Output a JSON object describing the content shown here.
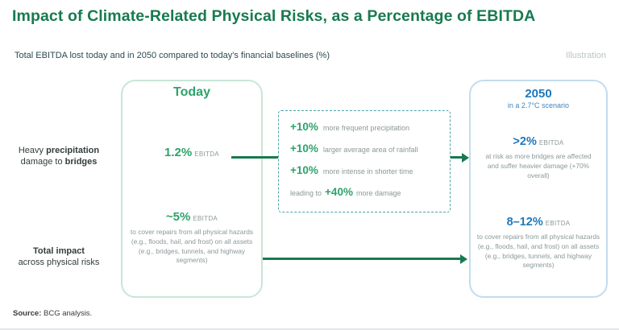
{
  "header": {
    "title": "Impact of Climate-Related Physical Risks, as a Percentage of EBITDA",
    "subtitle": "Total EBITDA lost today and in 2050 compared to today's financial baselines (%)",
    "tag": "Illustration"
  },
  "left_labels": {
    "row1": {
      "n1": "Heavy ",
      "b1": "precipitation",
      "n2": "damage to ",
      "b2": "bridges"
    },
    "row2": {
      "b1": "Total impact",
      "n1": "across physical risks"
    }
  },
  "today": {
    "title": "Today",
    "row1": {
      "value": "1.2%",
      "unit": "EBITDA"
    },
    "row2": {
      "value": "~5%",
      "unit": "EBITDA",
      "desc": "to cover repairs from all physical hazards (e.g., floods, hail, and frost) on all assets (e.g., bridges, tunnels, and highway segments)"
    }
  },
  "drivers": {
    "items": [
      {
        "value": "+10%",
        "label": "more frequent precipitation"
      },
      {
        "value": "+10%",
        "label": "larger average area of rainfall"
      },
      {
        "value": "+10%",
        "label": "more intense in shorter time"
      }
    ],
    "footer": {
      "prefix": "leading to",
      "value": "+40%",
      "suffix": "more damage"
    }
  },
  "future": {
    "title": "2050",
    "subtitle": "in a 2.7°C scenario",
    "row1": {
      "value": ">2%",
      "unit": "EBITDA",
      "desc": "at risk as more bridges are affected and suffer heavier damage (+70% overall)"
    },
    "row2": {
      "value": "8–12%",
      "unit": "EBITDA",
      "desc": "to cover repairs from all physical hazards (e.g., floods, hail, and frost) on all assets (e.g., bridges, tunnels, and highway segments)"
    }
  },
  "source": {
    "label": "Source:",
    "text": " BCG analysis."
  },
  "colors": {
    "title_green": "#187a50",
    "accent_green": "#2da36a",
    "accent_blue": "#1f78bb",
    "dashed_teal": "#4aa2aa",
    "muted_gray": "#8b9898"
  }
}
